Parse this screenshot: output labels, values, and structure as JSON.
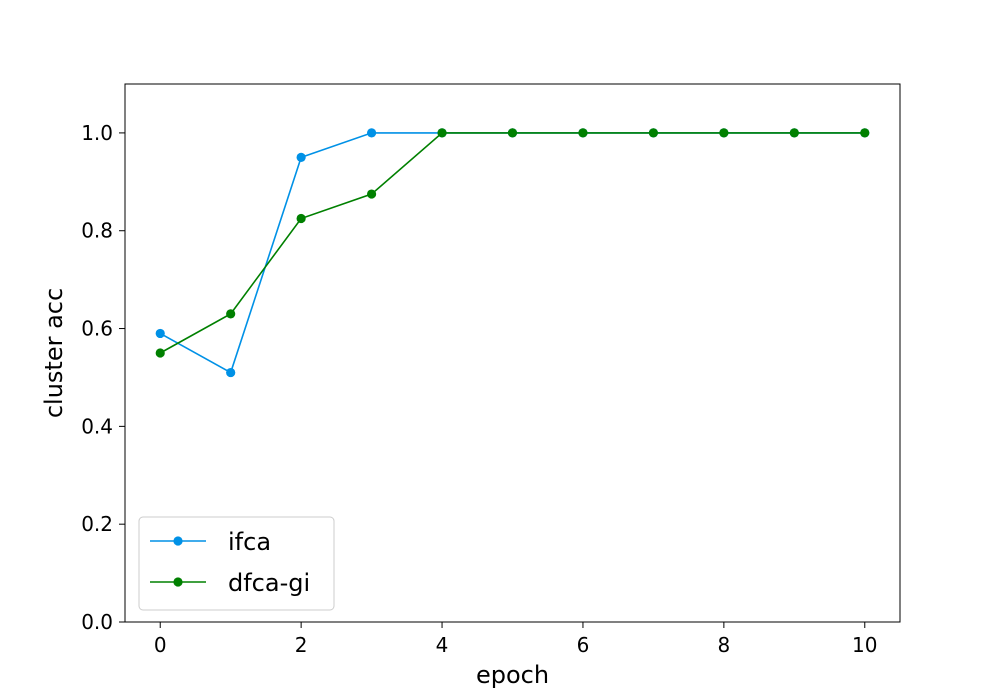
{
  "chart_data": {
    "type": "line",
    "title": "",
    "xlabel": "epoch",
    "ylabel": "cluster acc",
    "xlim": [
      -0.5,
      10.5
    ],
    "ylim": [
      0.0,
      1.1
    ],
    "x_ticks": [
      0,
      2,
      4,
      6,
      8,
      10
    ],
    "y_ticks": [
      0.0,
      0.2,
      0.4,
      0.6,
      0.8,
      1.0
    ],
    "x_tick_labels": [
      "0",
      "2",
      "4",
      "6",
      "8",
      "10"
    ],
    "y_tick_labels": [
      "0.0",
      "0.2",
      "0.4",
      "0.6",
      "0.8",
      "1.0"
    ],
    "grid": false,
    "legend": {
      "position": "lower-left"
    },
    "series": [
      {
        "name": "ifca",
        "color": "#0091e6",
        "marker": "circle",
        "x": [
          0,
          1,
          2,
          3,
          4,
          5,
          6,
          7,
          8,
          9,
          10
        ],
        "y": [
          0.59,
          0.51,
          0.95,
          1.0,
          1.0,
          1.0,
          1.0,
          1.0,
          1.0,
          1.0,
          1.0
        ]
      },
      {
        "name": "dfca-gi",
        "color": "#008000",
        "marker": "circle",
        "x": [
          0,
          1,
          2,
          3,
          4,
          5,
          6,
          7,
          8,
          9,
          10
        ],
        "y": [
          0.55,
          0.63,
          0.825,
          0.875,
          1.0,
          1.0,
          1.0,
          1.0,
          1.0,
          1.0,
          1.0
        ]
      }
    ]
  }
}
